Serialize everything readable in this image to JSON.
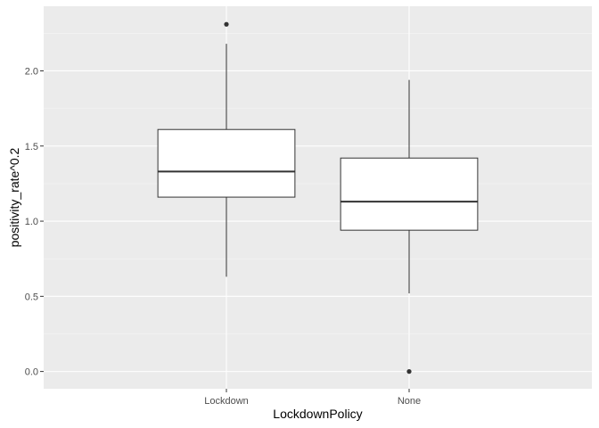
{
  "chart_data": {
    "type": "box",
    "title": "",
    "xlabel": "LockdownPolicy",
    "ylabel": "positivity_rate^0.2",
    "categories": [
      "Lockdown",
      "None"
    ],
    "boxes": [
      {
        "category": "Lockdown",
        "q1": 1.16,
        "median": 1.33,
        "q3": 1.61,
        "whisker_low": 0.63,
        "whisker_high": 2.18,
        "outliers": [
          2.31
        ]
      },
      {
        "category": "None",
        "q1": 0.94,
        "median": 1.13,
        "q3": 1.42,
        "whisker_low": 0.52,
        "whisker_high": 1.94,
        "outliers": [
          0.0
        ]
      }
    ],
    "y_ticks": [
      0.0,
      0.5,
      1.0,
      1.5,
      2.0
    ],
    "y_tick_labels": [
      "0.0",
      "0.5",
      "1.0",
      "1.5",
      "2.0"
    ],
    "ylim": [
      -0.115,
      2.43
    ],
    "grid": true,
    "colors": {
      "panel_bg": "#ebebeb",
      "grid_major": "#ffffff",
      "grid_minor": "#f5f5f5",
      "box_fill": "#ffffff",
      "box_stroke": "#333333",
      "tick": "#333333"
    }
  }
}
